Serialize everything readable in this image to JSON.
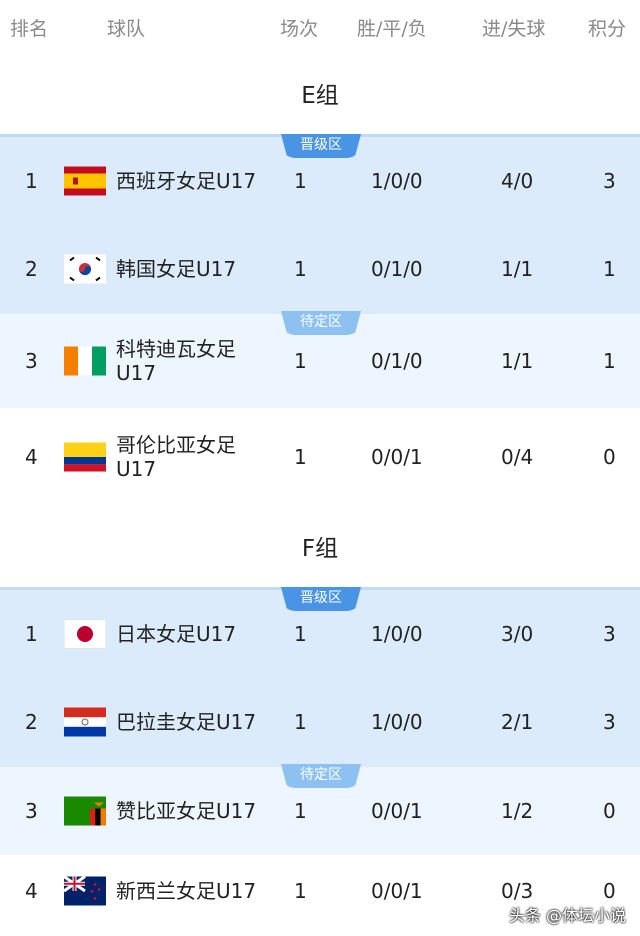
{
  "header": {
    "rank": "排名",
    "team": "球队",
    "played": "场次",
    "wdl": "胜/平/负",
    "goals": "进/失球",
    "points": "积分"
  },
  "zones": {
    "advance": "晋级区",
    "pending": "待定区"
  },
  "colors": {
    "advance_bg": "#dcebfb",
    "pending_bg": "#edf5fe",
    "advance_badge": "#4a94e6",
    "pending_badge": "#8dc1f2"
  },
  "groups": [
    {
      "title": "E组",
      "rows": [
        {
          "rank": "1",
          "team": "西班牙女足U17",
          "flag": "spain",
          "played": "1",
          "wdl": "1/0/0",
          "goals": "4/0",
          "points": "3"
        },
        {
          "rank": "2",
          "team": "韩国女足U17",
          "flag": "south-korea",
          "played": "1",
          "wdl": "0/1/0",
          "goals": "1/1",
          "points": "1"
        },
        {
          "rank": "3",
          "team": "科特迪瓦女足U17",
          "flag": "ivory-coast",
          "played": "1",
          "wdl": "0/1/0",
          "goals": "1/1",
          "points": "1"
        },
        {
          "rank": "4",
          "team": "哥伦比亚女足U17",
          "flag": "colombia",
          "played": "1",
          "wdl": "0/0/1",
          "goals": "0/4",
          "points": "0"
        }
      ]
    },
    {
      "title": "F组",
      "rows": [
        {
          "rank": "1",
          "team": "日本女足U17",
          "flag": "japan",
          "played": "1",
          "wdl": "1/0/0",
          "goals": "3/0",
          "points": "3"
        },
        {
          "rank": "2",
          "team": "巴拉圭女足U17",
          "flag": "paraguay",
          "played": "1",
          "wdl": "1/0/0",
          "goals": "2/1",
          "points": "3"
        },
        {
          "rank": "3",
          "team": "赞比亚女足U17",
          "flag": "zambia",
          "played": "1",
          "wdl": "0/0/1",
          "goals": "1/2",
          "points": "0"
        },
        {
          "rank": "4",
          "team": "新西兰女足U17",
          "flag": "new-zealand",
          "played": "1",
          "wdl": "0/0/1",
          "goals": "0/3",
          "points": "0"
        }
      ]
    }
  ],
  "watermark": "头条 @体坛小说"
}
